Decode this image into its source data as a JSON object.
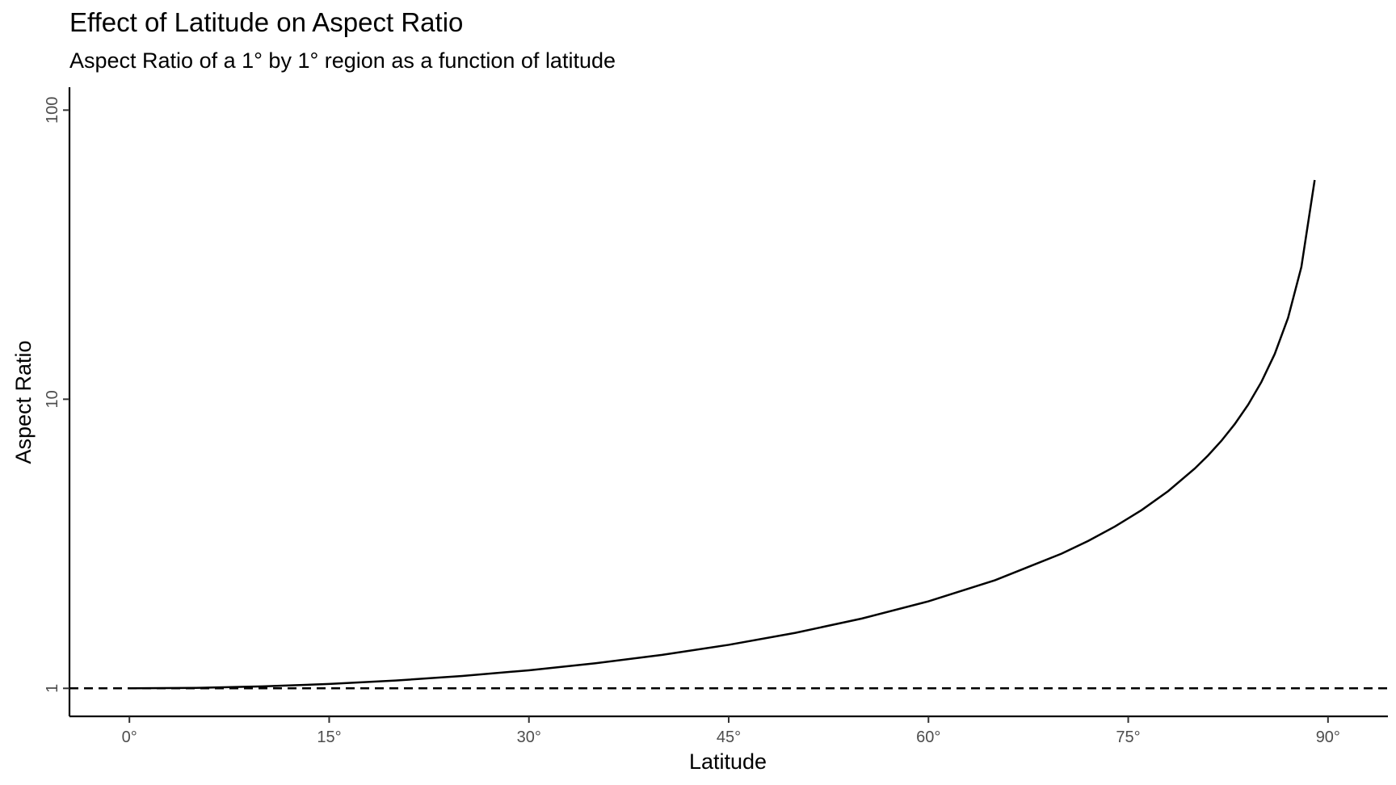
{
  "chart_data": {
    "type": "line",
    "title": "Effect of Latitude on Aspect Ratio",
    "subtitle": "Aspect Ratio of a 1° by 1° region as a function of latitude",
    "xlabel": "Latitude",
    "ylabel": "Aspect Ratio",
    "xlim": [
      -4.5,
      94.5
    ],
    "ylim": [
      0.8,
      120
    ],
    "y_scale": "log",
    "grid": false,
    "legend": "none",
    "x_ticks": [
      0,
      15,
      30,
      45,
      60,
      75,
      90
    ],
    "x_tick_labels": [
      "0°",
      "15°",
      "30°",
      "45°",
      "60°",
      "75°",
      "90°"
    ],
    "y_ticks": [
      1,
      10,
      100
    ],
    "y_tick_labels": [
      "1",
      "10",
      "100"
    ],
    "reference_line": {
      "y": 1,
      "style": "dashed"
    },
    "series": [
      {
        "x": [
          0,
          5,
          10,
          15,
          20,
          25,
          30,
          35,
          40,
          45,
          50,
          55,
          60,
          65,
          70,
          72,
          74,
          76,
          78,
          80,
          81,
          82,
          83,
          84,
          85,
          86,
          87,
          88,
          89
        ],
        "y": [
          1.0,
          1.0038,
          1.0154,
          1.0353,
          1.0642,
          1.1034,
          1.1547,
          1.2208,
          1.3054,
          1.4142,
          1.5557,
          1.7434,
          2.0,
          2.3662,
          2.9238,
          3.2361,
          3.628,
          4.1336,
          4.8097,
          5.7588,
          6.3925,
          7.1853,
          8.2055,
          9.5668,
          11.4737,
          14.3356,
          19.1073,
          28.6537,
          57.2987
        ]
      }
    ]
  }
}
